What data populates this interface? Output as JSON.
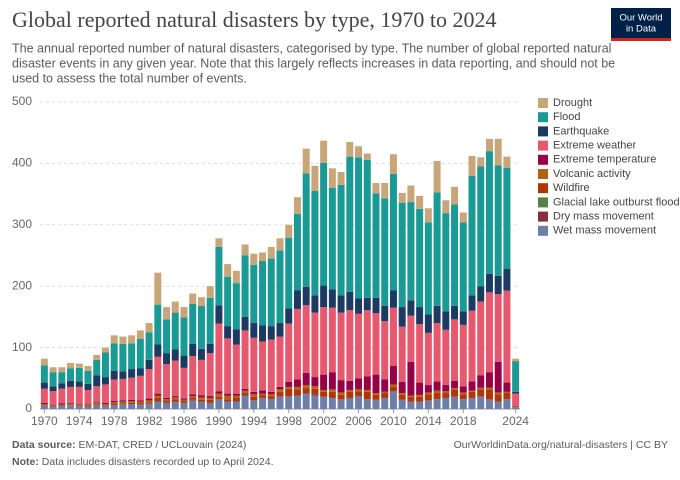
{
  "chart_data": {
    "type": "stacked_bar",
    "title": "Global reported natural disasters by type, 1970 to 2024",
    "subtitle_lines": [
      "The annual reported number of natural disasters, categorised by type. The number of global reported natural",
      "disaster events in any given year. Note that this largely reflects increases in data reporting, and should not be",
      "used to assess the total number of events."
    ],
    "logo": [
      "Our World",
      "in Data"
    ],
    "source_label": "Data source:",
    "source": "EM-DAT, CRED / UCLouvain (2024)",
    "url": "OurWorldinData.org/natural-disasters | CC BY",
    "note_label": "Note:",
    "note": "Data includes disasters recorded up to April 2024.",
    "grid": true,
    "legend": "right",
    "ylim": [
      0,
      500
    ],
    "yticks": [
      0,
      100,
      200,
      300,
      400,
      500
    ],
    "categories": [
      "1970",
      null,
      null,
      null,
      "1974",
      null,
      null,
      null,
      "1978",
      null,
      null,
      null,
      "1982",
      null,
      null,
      null,
      "1986",
      null,
      null,
      null,
      "1990",
      null,
      null,
      null,
      "1994",
      null,
      null,
      null,
      "1998",
      null,
      null,
      null,
      "2002",
      null,
      null,
      null,
      "2006",
      null,
      null,
      null,
      "2010",
      null,
      null,
      null,
      "2014",
      null,
      null,
      null,
      "2018",
      null,
      null,
      null,
      null,
      null,
      "2024"
    ],
    "series": [
      {
        "name": "Drought",
        "color": "#c9a57a",
        "values": [
          11,
          8,
          8,
          9,
          7,
          8,
          8,
          8,
          13,
          12,
          13,
          14,
          15,
          52,
          20,
          18,
          17,
          17,
          14,
          19,
          14,
          21,
          20,
          18,
          18,
          14,
          19,
          20,
          21,
          27,
          40,
          41,
          36,
          32,
          21,
          24,
          18,
          10,
          17,
          25,
          32,
          16,
          27,
          21,
          23,
          51,
          21,
          29,
          16,
          32,
          15,
          20,
          43,
          18,
          4
        ]
      },
      {
        "name": "Flood",
        "color": "#1a9a94",
        "values": [
          28,
          23,
          18,
          20,
          22,
          21,
          25,
          40,
          45,
          45,
          42,
          48,
          45,
          65,
          55,
          60,
          62,
          65,
          70,
          75,
          95,
          80,
          75,
          100,
          95,
          105,
          110,
          118,
          115,
          125,
          185,
          170,
          200,
          165,
          180,
          220,
          230,
          225,
          170,
          175,
          190,
          170,
          160,
          160,
          150,
          185,
          160,
          165,
          145,
          195,
          195,
          200,
          180,
          165,
          50
        ]
      },
      {
        "name": "Earthquake",
        "color": "#1d3a63",
        "values": [
          10,
          8,
          9,
          10,
          9,
          10,
          18,
          12,
          14,
          12,
          14,
          12,
          15,
          20,
          18,
          18,
          20,
          20,
          18,
          15,
          30,
          20,
          25,
          22,
          24,
          26,
          22,
          22,
          25,
          30,
          30,
          28,
          35,
          30,
          28,
          30,
          25,
          20,
          25,
          25,
          28,
          32,
          25,
          28,
          30,
          28,
          30,
          22,
          22,
          25,
          25,
          30,
          30,
          35,
          3
        ]
      },
      {
        "name": "Extreme weather",
        "color": "#e5586e",
        "values": [
          23,
          22,
          24,
          26,
          28,
          23,
          25,
          30,
          35,
          35,
          36,
          40,
          48,
          60,
          55,
          58,
          50,
          62,
          58,
          70,
          110,
          90,
          80,
          95,
          88,
          80,
          85,
          82,
          95,
          115,
          110,
          105,
          110,
          105,
          110,
          115,
          105,
          108,
          100,
          95,
          95,
          90,
          75,
          95,
          85,
          95,
          90,
          100,
          100,
          115,
          120,
          130,
          110,
          150,
          20
        ]
      },
      {
        "name": "Extreme temperature",
        "color": "#970046",
        "values": [
          2,
          1,
          2,
          1,
          1,
          1,
          1,
          2,
          2,
          2,
          2,
          2,
          3,
          3,
          2,
          2,
          2,
          3,
          3,
          3,
          4,
          3,
          3,
          3,
          4,
          5,
          4,
          4,
          8,
          12,
          20,
          15,
          25,
          28,
          20,
          15,
          18,
          22,
          30,
          20,
          30,
          18,
          55,
          20,
          12,
          15,
          10,
          12,
          10,
          15,
          20,
          25,
          50,
          15,
          0
        ]
      },
      {
        "name": "Volcanic activity",
        "color": "#b16214",
        "values": [
          2,
          2,
          1,
          2,
          2,
          2,
          3,
          2,
          3,
          4,
          3,
          3,
          5,
          4,
          3,
          3,
          2,
          3,
          4,
          3,
          5,
          6,
          4,
          4,
          4,
          3,
          3,
          4,
          3,
          4,
          5,
          4,
          3,
          4,
          4,
          3,
          3,
          3,
          3,
          2,
          4,
          3,
          2,
          3,
          3,
          4,
          3,
          2,
          3,
          2,
          3,
          4,
          3,
          2,
          1
        ]
      },
      {
        "name": "Wildfire",
        "color": "#b13507",
        "values": [
          1,
          0,
          0,
          1,
          0,
          1,
          1,
          1,
          2,
          1,
          2,
          2,
          1,
          5,
          3,
          4,
          3,
          3,
          3,
          5,
          4,
          4,
          5,
          4,
          6,
          4,
          5,
          8,
          12,
          10,
          8,
          10,
          8,
          10,
          7,
          10,
          8,
          12,
          8,
          8,
          7,
          8,
          8,
          8,
          10,
          10,
          8,
          12,
          8,
          10,
          12,
          15,
          12,
          10,
          1
        ]
      },
      {
        "name": "Glacial lake outburst flood",
        "color": "#578145",
        "values": [
          0,
          0,
          0,
          0,
          0,
          0,
          0,
          0,
          0,
          0,
          0,
          0,
          0,
          0,
          0,
          0,
          0,
          0,
          0,
          0,
          0,
          0,
          0,
          0,
          0,
          0,
          0,
          0,
          0,
          0,
          0,
          0,
          0,
          0,
          0,
          0,
          0,
          0,
          0,
          0,
          0,
          0,
          0,
          0,
          0,
          0,
          0,
          0,
          0,
          0,
          0,
          0,
          0,
          0,
          0
        ]
      },
      {
        "name": "Dry mass movement",
        "color": "#883039",
        "values": [
          0,
          0,
          1,
          0,
          0,
          0,
          1,
          0,
          0,
          0,
          0,
          0,
          0,
          1,
          0,
          1,
          0,
          1,
          0,
          0,
          1,
          0,
          1,
          0,
          0,
          0,
          0,
          0,
          1,
          0,
          1,
          1,
          0,
          0,
          1,
          0,
          1,
          0,
          0,
          0,
          1,
          0,
          0,
          0,
          0,
          0,
          0,
          0,
          0,
          0,
          0,
          1,
          0,
          0,
          0
        ]
      },
      {
        "name": "Wet mass movement",
        "color": "#6d7fa8",
        "values": [
          5,
          4,
          5,
          6,
          5,
          4,
          6,
          5,
          6,
          7,
          8,
          7,
          8,
          12,
          10,
          11,
          10,
          14,
          12,
          10,
          15,
          12,
          12,
          22,
          14,
          18,
          16,
          20,
          20,
          22,
          25,
          22,
          20,
          18,
          15,
          18,
          20,
          16,
          15,
          18,
          28,
          15,
          12,
          12,
          14,
          16,
          18,
          20,
          16,
          18,
          20,
          15,
          12,
          16,
          3
        ]
      }
    ]
  }
}
